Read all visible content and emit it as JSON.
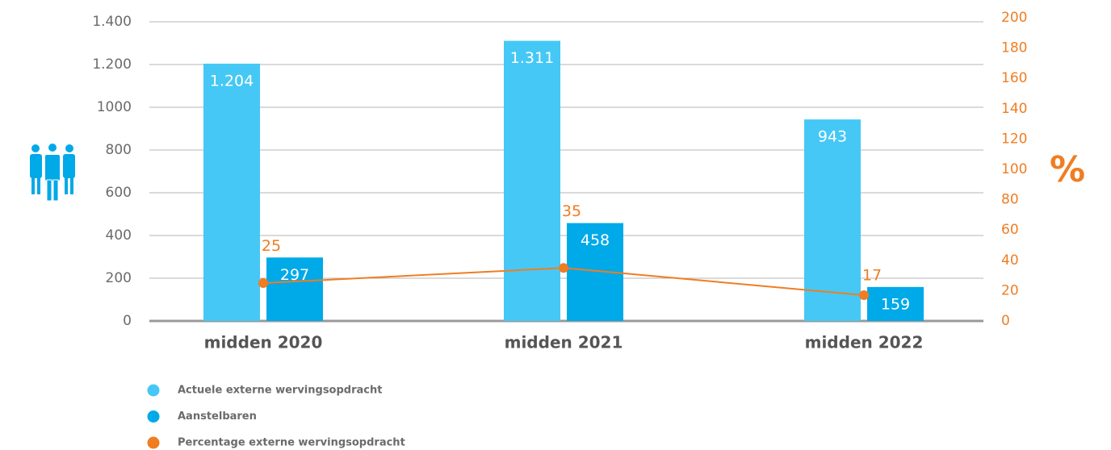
{
  "chart_data": {
    "type": "bar",
    "categories": [
      "midden 2020",
      "midden 2021",
      "midden 2022"
    ],
    "series": [
      {
        "name": "Actuele externe wervingsopdracht",
        "color": "#45c8f5",
        "values": [
          1204,
          1311,
          943
        ],
        "value_labels": [
          "1.204",
          "1.311",
          "943"
        ]
      },
      {
        "name": "Aanstelbaren",
        "color": "#00a9e8",
        "values": [
          297,
          458,
          159
        ]
      },
      {
        "name": "Percentage externe wervingsopdracht",
        "color": "#f07d22",
        "type": "line",
        "axis": "y2",
        "values": [
          25,
          35,
          17
        ]
      }
    ],
    "ylim": [
      0,
      1400
    ],
    "yticks": [
      0,
      200,
      400,
      600,
      800,
      1000,
      {
        "value": 1200,
        "label": "1.200"
      },
      {
        "value": 1400,
        "label": "1.400"
      }
    ],
    "y2lim": [
      0,
      200
    ],
    "y2ticks": [
      0,
      20,
      40,
      60,
      80,
      100,
      120,
      140,
      160,
      180,
      200
    ],
    "y2_label": "%",
    "grid": true
  }
}
